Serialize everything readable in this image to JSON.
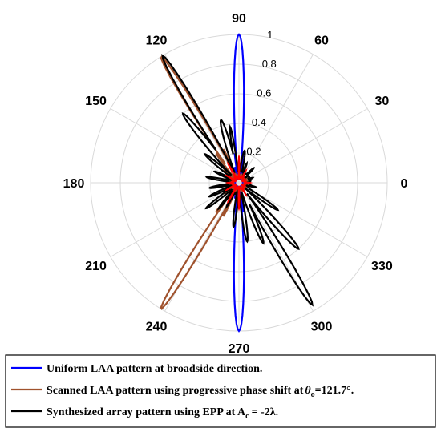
{
  "chart_data": {
    "type": "polar-line",
    "angle_unit": "degrees",
    "angle_ticks": [
      "0",
      "30",
      "60",
      "90",
      "120",
      "150",
      "180",
      "210",
      "240",
      "270",
      "300",
      "330"
    ],
    "radial_ticks": [
      "0.2",
      "0.4",
      "0.6",
      "0.8",
      "1"
    ],
    "rlim": [
      0,
      1
    ],
    "grid": true,
    "legend_position": "bottom",
    "series": [
      {
        "name": "Uniform LAA pattern at broadside direction.",
        "color": "#0000ff",
        "legend_parts": [
          "Uniform LAA pattern at broadside direction."
        ],
        "lobes": [
          {
            "center": 90,
            "width": 4.5,
            "amp": 1.0
          },
          {
            "center": 270,
            "width": 4.5,
            "amp": 1.0
          },
          {
            "center": 82,
            "width": 2,
            "amp": 0.2
          },
          {
            "center": 98,
            "width": 2,
            "amp": 0.2
          },
          {
            "center": 262,
            "width": 2,
            "amp": 0.2
          },
          {
            "center": 278,
            "width": 2,
            "amp": 0.2
          },
          {
            "center": 75,
            "width": 2,
            "amp": 0.11
          },
          {
            "center": 105,
            "width": 2,
            "amp": 0.11
          },
          {
            "center": 255,
            "width": 2,
            "amp": 0.11
          },
          {
            "center": 285,
            "width": 2,
            "amp": 0.11
          }
        ],
        "floor": 0.02
      },
      {
        "name": "Scanned LAA pattern using progressive phase shift at θo=121.7°.",
        "color": "#a0522d",
        "legend_parts": [
          "Scanned LAA pattern using progressive phase shift at",
          "θ",
          "o",
          "=121.7°."
        ],
        "lobes": [
          {
            "center": 121.7,
            "width": 3.2,
            "amp": 1.0
          },
          {
            "center": 238.3,
            "width": 3.2,
            "amp": 1.0
          },
          {
            "center": 128,
            "width": 2.2,
            "amp": 0.25
          },
          {
            "center": 115,
            "width": 2.2,
            "amp": 0.25
          },
          {
            "center": 232,
            "width": 2.2,
            "amp": 0.25
          },
          {
            "center": 245,
            "width": 2.2,
            "amp": 0.25
          },
          {
            "center": 140,
            "width": 3,
            "amp": 0.12
          },
          {
            "center": 220,
            "width": 3,
            "amp": 0.12
          }
        ],
        "floor": 0.03
      },
      {
        "name": "Synthesized array pattern using EPP at Ac = -2λ.",
        "color": "#000000",
        "legend_parts": [
          "Synthesized array pattern using EPP at A",
          "c",
          "= -2λ."
        ],
        "lobes": [
          {
            "center": 121,
            "width": 3.5,
            "amp": 1.0
          },
          {
            "center": 129,
            "width": 4,
            "amp": 0.6
          },
          {
            "center": 106,
            "width": 5,
            "amp": 0.44
          },
          {
            "center": 99,
            "width": 3,
            "amp": 0.38
          },
          {
            "center": 80,
            "width": 5,
            "amp": 0.22
          },
          {
            "center": 68,
            "width": 3,
            "amp": 0.14
          },
          {
            "center": 140,
            "width": 4,
            "amp": 0.3
          },
          {
            "center": 155,
            "width": 4,
            "amp": 0.18
          },
          {
            "center": 170,
            "width": 4,
            "amp": 0.22
          },
          {
            "center": 190,
            "width": 4,
            "amp": 0.2
          },
          {
            "center": 205,
            "width": 4,
            "amp": 0.22
          },
          {
            "center": 218,
            "width": 4,
            "amp": 0.28
          },
          {
            "center": 232,
            "width": 3,
            "amp": 0.22
          },
          {
            "center": 243,
            "width": 3,
            "amp": 0.18
          },
          {
            "center": 263,
            "width": 4,
            "amp": 0.3
          },
          {
            "center": 278,
            "width": 4,
            "amp": 0.4
          },
          {
            "center": 292,
            "width": 4,
            "amp": 0.44
          },
          {
            "center": 301,
            "width": 3.5,
            "amp": 0.96
          },
          {
            "center": 312,
            "width": 4,
            "amp": 0.6
          },
          {
            "center": 325,
            "width": 4,
            "amp": 0.32
          },
          {
            "center": 345,
            "width": 4,
            "amp": 0.12
          },
          {
            "center": 20,
            "width": 4,
            "amp": 0.1
          },
          {
            "center": 45,
            "width": 4,
            "amp": 0.14
          }
        ],
        "floor": 0.05
      },
      {
        "name": "",
        "color": "#ff0000",
        "legend_parts": [],
        "lobes": [
          {
            "center": 90,
            "width": 3,
            "amp": 0.18
          },
          {
            "center": 270,
            "width": 3,
            "amp": 0.18
          },
          {
            "center": 120,
            "width": 3,
            "amp": 0.15
          },
          {
            "center": 240,
            "width": 3,
            "amp": 0.15
          },
          {
            "center": 60,
            "width": 3,
            "amp": 0.1
          },
          {
            "center": 300,
            "width": 3,
            "amp": 0.1
          },
          {
            "center": 150,
            "width": 3,
            "amp": 0.1
          },
          {
            "center": 210,
            "width": 3,
            "amp": 0.1
          },
          {
            "center": 0,
            "width": 3,
            "amp": 0.08
          },
          {
            "center": 180,
            "width": 3,
            "amp": 0.08
          }
        ],
        "floor": 0.02
      }
    ]
  }
}
